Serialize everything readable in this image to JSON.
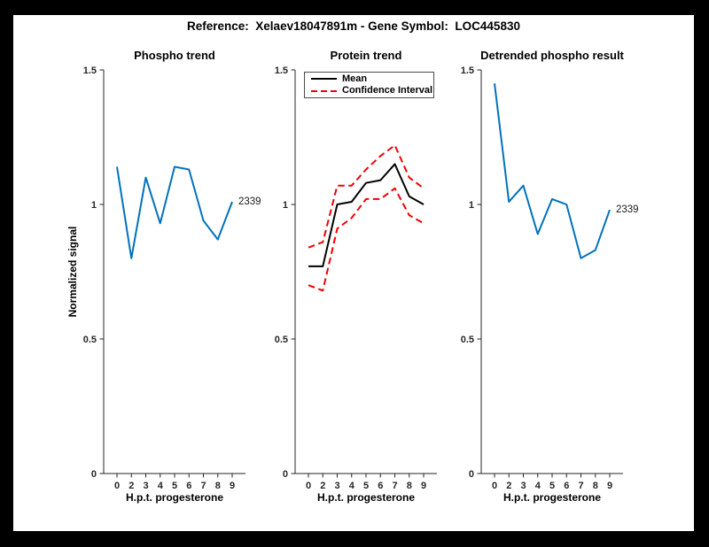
{
  "figure": {
    "title": "Reference:  Xelaev18047891m - Gene Symbol:  LOC445830",
    "background": "#000000",
    "canvas": "#ffffff",
    "colors": {
      "blue": "#0072BD",
      "red": "#F00000",
      "black": "#000000",
      "axis": "#262626"
    }
  },
  "chart_data": [
    {
      "type": "line",
      "title": "Phospho trend",
      "xlabel": "H.p.t. progesterone",
      "ylabel": "Normalized signal",
      "x": [
        0,
        2,
        3,
        4,
        5,
        6,
        7,
        8,
        9
      ],
      "x_tick_labels": [
        "0",
        "2",
        "3",
        "4",
        "5",
        "6",
        "7",
        "8",
        "9"
      ],
      "y_ticks": [
        0,
        0.5,
        1,
        1.5
      ],
      "y_tick_labels": [
        "0",
        "0.5",
        "1",
        "1.5"
      ],
      "ylim": [
        0,
        1.5
      ],
      "grid": false,
      "series": [
        {
          "name": "2339",
          "color": "blue",
          "style": "solid",
          "values": [
            1.14,
            0.8,
            1.1,
            0.93,
            1.14,
            1.13,
            0.94,
            0.87,
            1.01
          ]
        }
      ],
      "annotation": {
        "text": "2339",
        "value": 1.01
      },
      "legend": null
    },
    {
      "type": "line",
      "title": "Protein trend",
      "xlabel": "H.p.t. progesterone",
      "ylabel": "",
      "x": [
        0,
        2,
        3,
        4,
        5,
        6,
        7,
        8,
        9
      ],
      "x_tick_labels": [
        "0",
        "2",
        "3",
        "4",
        "5",
        "6",
        "7",
        "8",
        "9"
      ],
      "y_ticks": [
        0,
        0.5,
        1,
        1.5
      ],
      "y_tick_labels": [
        "0",
        "0.5",
        "1",
        "1.5"
      ],
      "ylim": [
        0,
        1.5
      ],
      "grid": false,
      "series": [
        {
          "name": "Mean",
          "color": "black",
          "style": "solid",
          "values": [
            0.77,
            0.77,
            1.0,
            1.01,
            1.08,
            1.09,
            1.15,
            1.03,
            1.0
          ]
        },
        {
          "name": "Confidence Interval upper",
          "color": "red",
          "style": "dashed",
          "values": [
            0.84,
            0.86,
            1.07,
            1.07,
            1.13,
            1.18,
            1.22,
            1.1,
            1.06
          ]
        },
        {
          "name": "Confidence Interval lower",
          "color": "red",
          "style": "dashed",
          "values": [
            0.7,
            0.68,
            0.91,
            0.95,
            1.02,
            1.02,
            1.06,
            0.96,
            0.93
          ]
        }
      ],
      "annotation": null,
      "legend": {
        "position": "northwest",
        "entries": [
          {
            "label": "Mean",
            "color": "black",
            "style": "solid"
          },
          {
            "label": "Confidence Interval",
            "color": "red",
            "style": "dashed"
          }
        ]
      }
    },
    {
      "type": "line",
      "title": "Detrended phospho result",
      "xlabel": "H.p.t. progesterone",
      "ylabel": "",
      "x": [
        0,
        2,
        3,
        4,
        5,
        6,
        7,
        8,
        9
      ],
      "x_tick_labels": [
        "0",
        "2",
        "3",
        "4",
        "5",
        "6",
        "7",
        "8",
        "9"
      ],
      "y_ticks": [
        0,
        0.5,
        1,
        1.5
      ],
      "y_tick_labels": [
        "0",
        "0.5",
        "1",
        "1.5"
      ],
      "ylim": [
        0,
        1.5
      ],
      "grid": false,
      "series": [
        {
          "name": "2339",
          "color": "blue",
          "style": "solid",
          "values": [
            1.45,
            1.01,
            1.07,
            0.89,
            1.02,
            1.0,
            0.8,
            0.83,
            0.98
          ]
        }
      ],
      "annotation": {
        "text": "2339",
        "value": 0.98
      },
      "legend": null
    }
  ]
}
